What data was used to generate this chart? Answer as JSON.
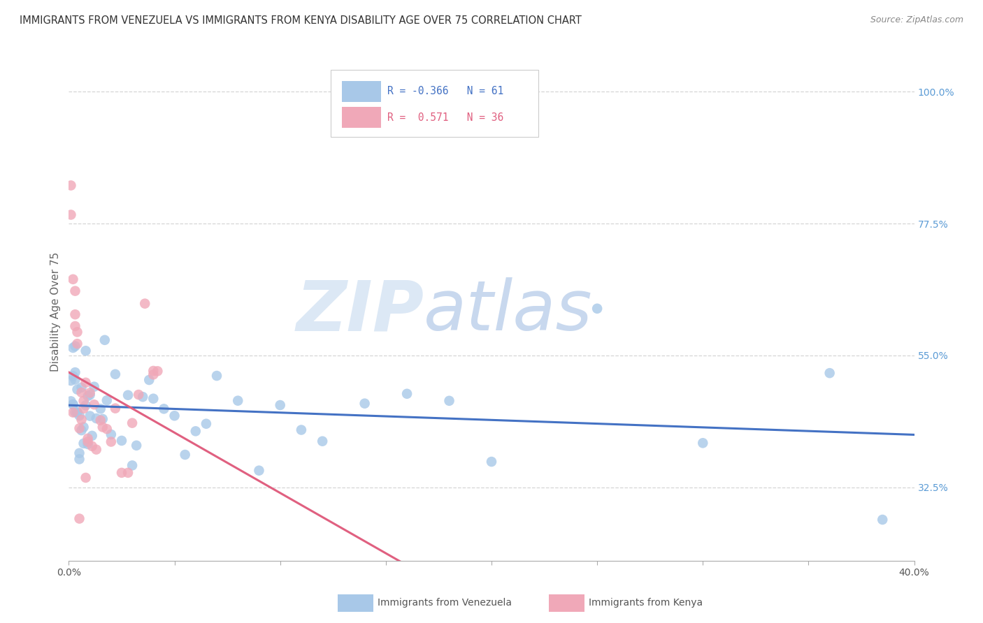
{
  "title": "IMMIGRANTS FROM VENEZUELA VS IMMIGRANTS FROM KENYA DISABILITY AGE OVER 75 CORRELATION CHART",
  "source": "Source: ZipAtlas.com",
  "ylabel": "Disability Age Over 75",
  "xmin": 0.0,
  "xmax": 0.4,
  "ymin": 0.2,
  "ymax": 1.05,
  "ytick_labels": [
    "32.5%",
    "55.0%",
    "77.5%",
    "100.0%"
  ],
  "ytick_values": [
    0.325,
    0.55,
    0.775,
    1.0
  ],
  "r_venezuela": -0.366,
  "n_venezuela": 61,
  "r_kenya": 0.571,
  "n_kenya": 36,
  "venezuela_color": "#a8c8e8",
  "kenya_color": "#f0a8b8",
  "venezuela_line_color": "#4472c4",
  "kenya_line_color": "#e06080",
  "background_color": "#ffffff",
  "grid_color": "#cccccc",
  "watermark_color": "#dce8f5",
  "title_color": "#333333",
  "axis_label_color": "#666666",
  "right_axis_label_color": "#5b9bd5",
  "legend_box_venezuela": "#a8c8e8",
  "legend_box_kenya": "#f0a8b8",
  "source_color": "#888888"
}
